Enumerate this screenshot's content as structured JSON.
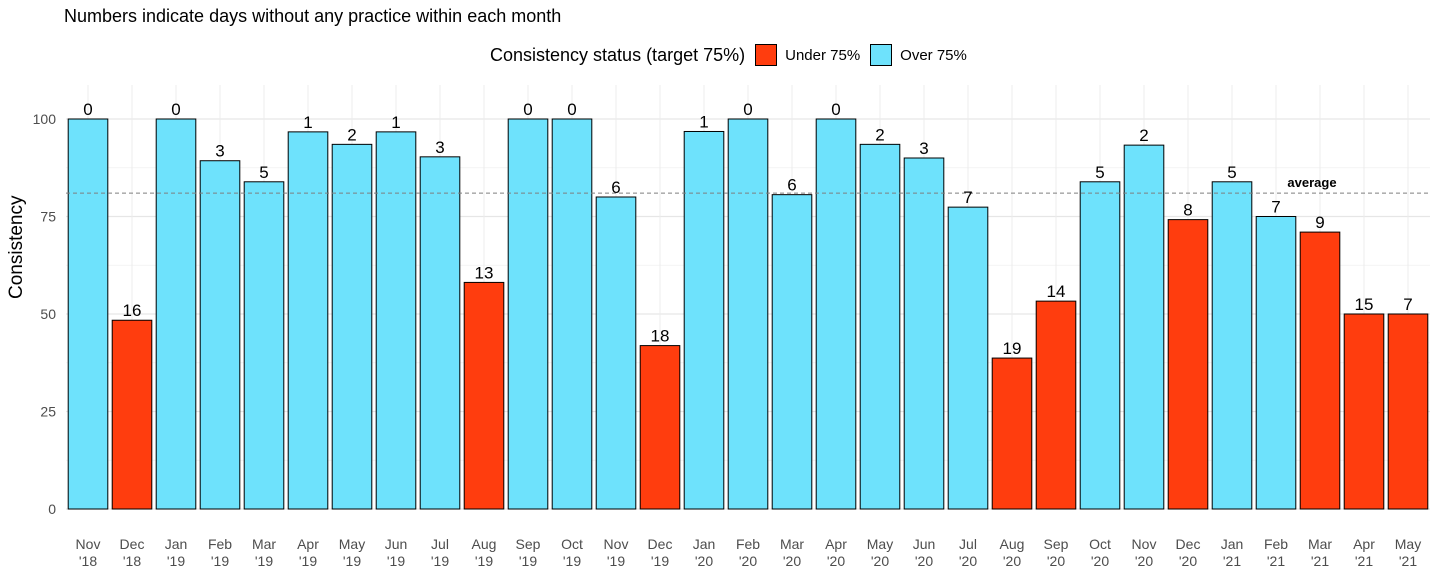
{
  "chart_data": {
    "type": "bar",
    "subtitle": "Numbers indicate days without any practice within each month",
    "ylabel": "Consistency",
    "ylim": [
      0,
      107
    ],
    "yticks": [
      0,
      25,
      50,
      75,
      100
    ],
    "grid": true,
    "legend": {
      "title": "Consistency status (target 75%)",
      "position": "top",
      "items": [
        {
          "label": "Under 75%",
          "color": "#FF3D0E"
        },
        {
          "label": "Over 75%",
          "color": "#6EE2FC"
        }
      ]
    },
    "average": {
      "value": 81,
      "label": "average"
    },
    "categories": [
      [
        "Nov",
        "'18"
      ],
      [
        "Dec",
        "'18"
      ],
      [
        "Jan",
        "'19"
      ],
      [
        "Feb",
        "'19"
      ],
      [
        "Mar",
        "'19"
      ],
      [
        "Apr",
        "'19"
      ],
      [
        "May",
        "'19"
      ],
      [
        "Jun",
        "'19"
      ],
      [
        "Jul",
        "'19"
      ],
      [
        "Aug",
        "'19"
      ],
      [
        "Sep",
        "'19"
      ],
      [
        "Oct",
        "'19"
      ],
      [
        "Nov",
        "'19"
      ],
      [
        "Dec",
        "'19"
      ],
      [
        "Jan",
        "'20"
      ],
      [
        "Feb",
        "'20"
      ],
      [
        "Mar",
        "'20"
      ],
      [
        "Apr",
        "'20"
      ],
      [
        "May",
        "'20"
      ],
      [
        "Jun",
        "'20"
      ],
      [
        "Jul",
        "'20"
      ],
      [
        "Aug",
        "'20"
      ],
      [
        "Sep",
        "'20"
      ],
      [
        "Oct",
        "'20"
      ],
      [
        "Nov",
        "'20"
      ],
      [
        "Dec",
        "'20"
      ],
      [
        "Jan",
        "'21"
      ],
      [
        "Feb",
        "'21"
      ],
      [
        "Mar",
        "'21"
      ],
      [
        "Apr",
        "'21"
      ],
      [
        "May",
        "'21"
      ]
    ],
    "values": [
      100,
      48.4,
      100,
      89.3,
      83.9,
      96.7,
      93.5,
      96.7,
      90.3,
      58.1,
      100,
      100,
      80,
      41.9,
      96.8,
      100,
      80.6,
      100,
      93.5,
      90,
      77.4,
      38.7,
      53.3,
      83.9,
      93.3,
      74.2,
      83.9,
      75,
      71,
      50,
      50
    ],
    "days_without_practice": [
      0,
      16,
      0,
      3,
      5,
      1,
      2,
      1,
      3,
      13,
      0,
      0,
      6,
      18,
      1,
      0,
      6,
      0,
      2,
      3,
      7,
      19,
      14,
      5,
      2,
      8,
      5,
      7,
      9,
      15,
      7
    ],
    "status": [
      "over",
      "under",
      "over",
      "over",
      "over",
      "over",
      "over",
      "over",
      "over",
      "under",
      "over",
      "over",
      "over",
      "under",
      "over",
      "over",
      "over",
      "over",
      "over",
      "over",
      "over",
      "under",
      "under",
      "over",
      "over",
      "under",
      "over",
      "over",
      "under",
      "under",
      "under"
    ]
  }
}
